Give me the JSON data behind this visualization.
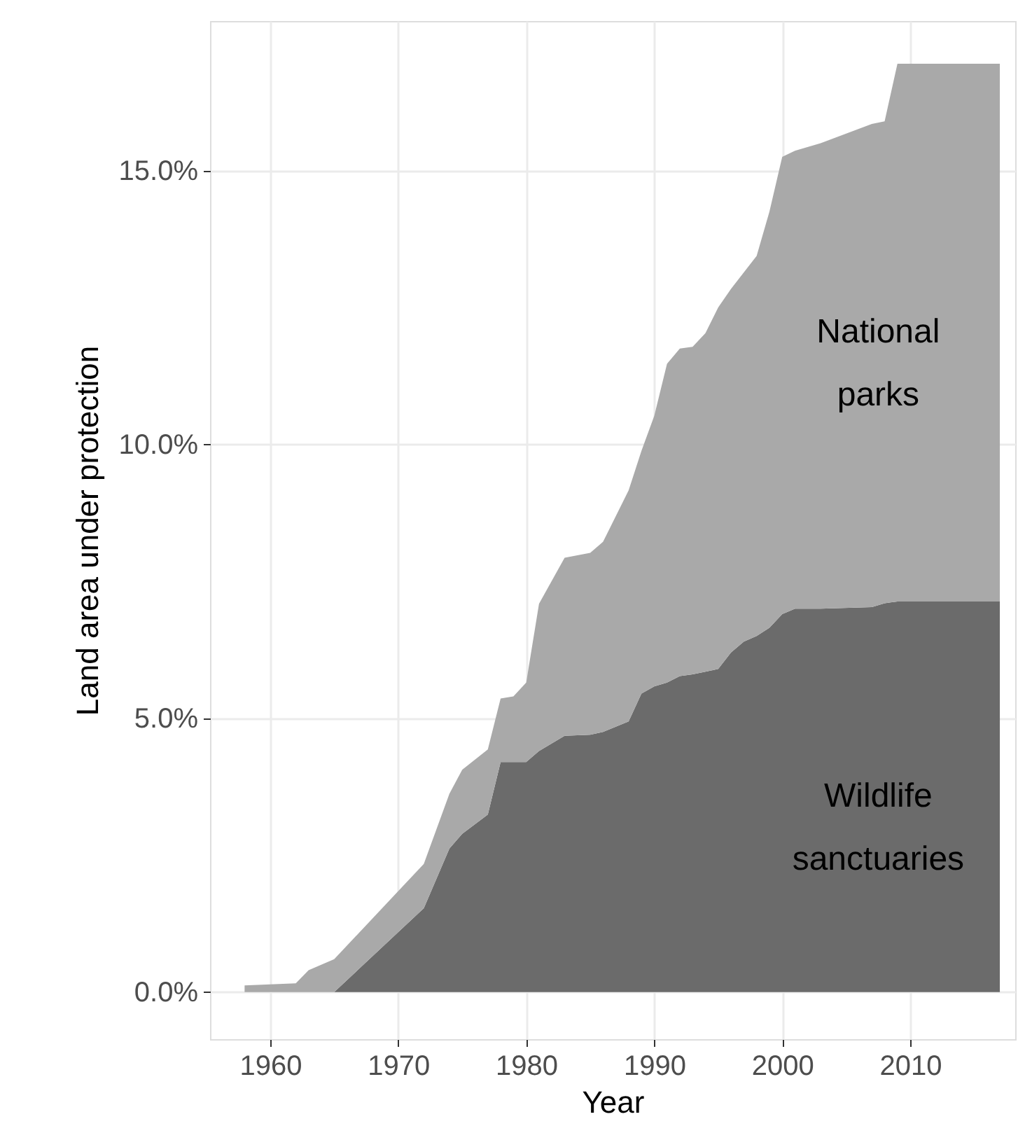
{
  "chart_data": {
    "type": "area",
    "stacked": true,
    "xlabel": "Year",
    "ylabel": "Land area under protection",
    "x": [
      1958,
      1960,
      1962,
      1963,
      1965,
      1972,
      1974,
      1975,
      1977,
      1978,
      1979,
      1980,
      1981,
      1983,
      1985,
      1986,
      1988,
      1989,
      1990,
      1991,
      1992,
      1993,
      1994,
      1995,
      1996,
      1997,
      1998,
      1999,
      2000,
      2001,
      2003,
      2007,
      2008,
      2009,
      2017
    ],
    "series": [
      {
        "name": "Wildlife sanctuaries",
        "color": "#6b6b6b",
        "values": [
          0,
          0,
          0,
          0,
          0,
          1.53,
          2.62,
          2.89,
          3.24,
          4.2,
          4.2,
          4.2,
          4.4,
          4.68,
          4.7,
          4.75,
          4.94,
          5.45,
          5.58,
          5.65,
          5.77,
          5.8,
          5.85,
          5.9,
          6.2,
          6.4,
          6.5,
          6.65,
          6.9,
          7.0,
          7.0,
          7.03,
          7.1,
          7.13,
          7.13
        ]
      },
      {
        "name": "National parks",
        "color": "#a9a9a9",
        "values": [
          0.12,
          0.14,
          0.16,
          0.4,
          0.6,
          0.81,
          1.0,
          1.17,
          1.19,
          1.16,
          1.2,
          1.45,
          2.69,
          3.25,
          3.32,
          3.47,
          4.22,
          4.43,
          4.94,
          5.82,
          5.98,
          5.98,
          6.18,
          6.6,
          6.64,
          6.74,
          6.94,
          7.6,
          8.35,
          8.36,
          8.5,
          8.82,
          8.8,
          9.82,
          9.82
        ]
      }
    ],
    "xlim": [
      1955.3,
      2018.2
    ],
    "xticks": [
      1960,
      1970,
      1980,
      1990,
      2000,
      2010
    ],
    "ylim": [
      -0.86,
      17.73
    ],
    "yticks": [
      {
        "value": 0,
        "label": "0.0%"
      },
      {
        "value": 5,
        "label": "5.0%"
      },
      {
        "value": 10,
        "label": "10.0%"
      },
      {
        "value": 15,
        "label": "15.0%"
      }
    ],
    "grid": true
  }
}
